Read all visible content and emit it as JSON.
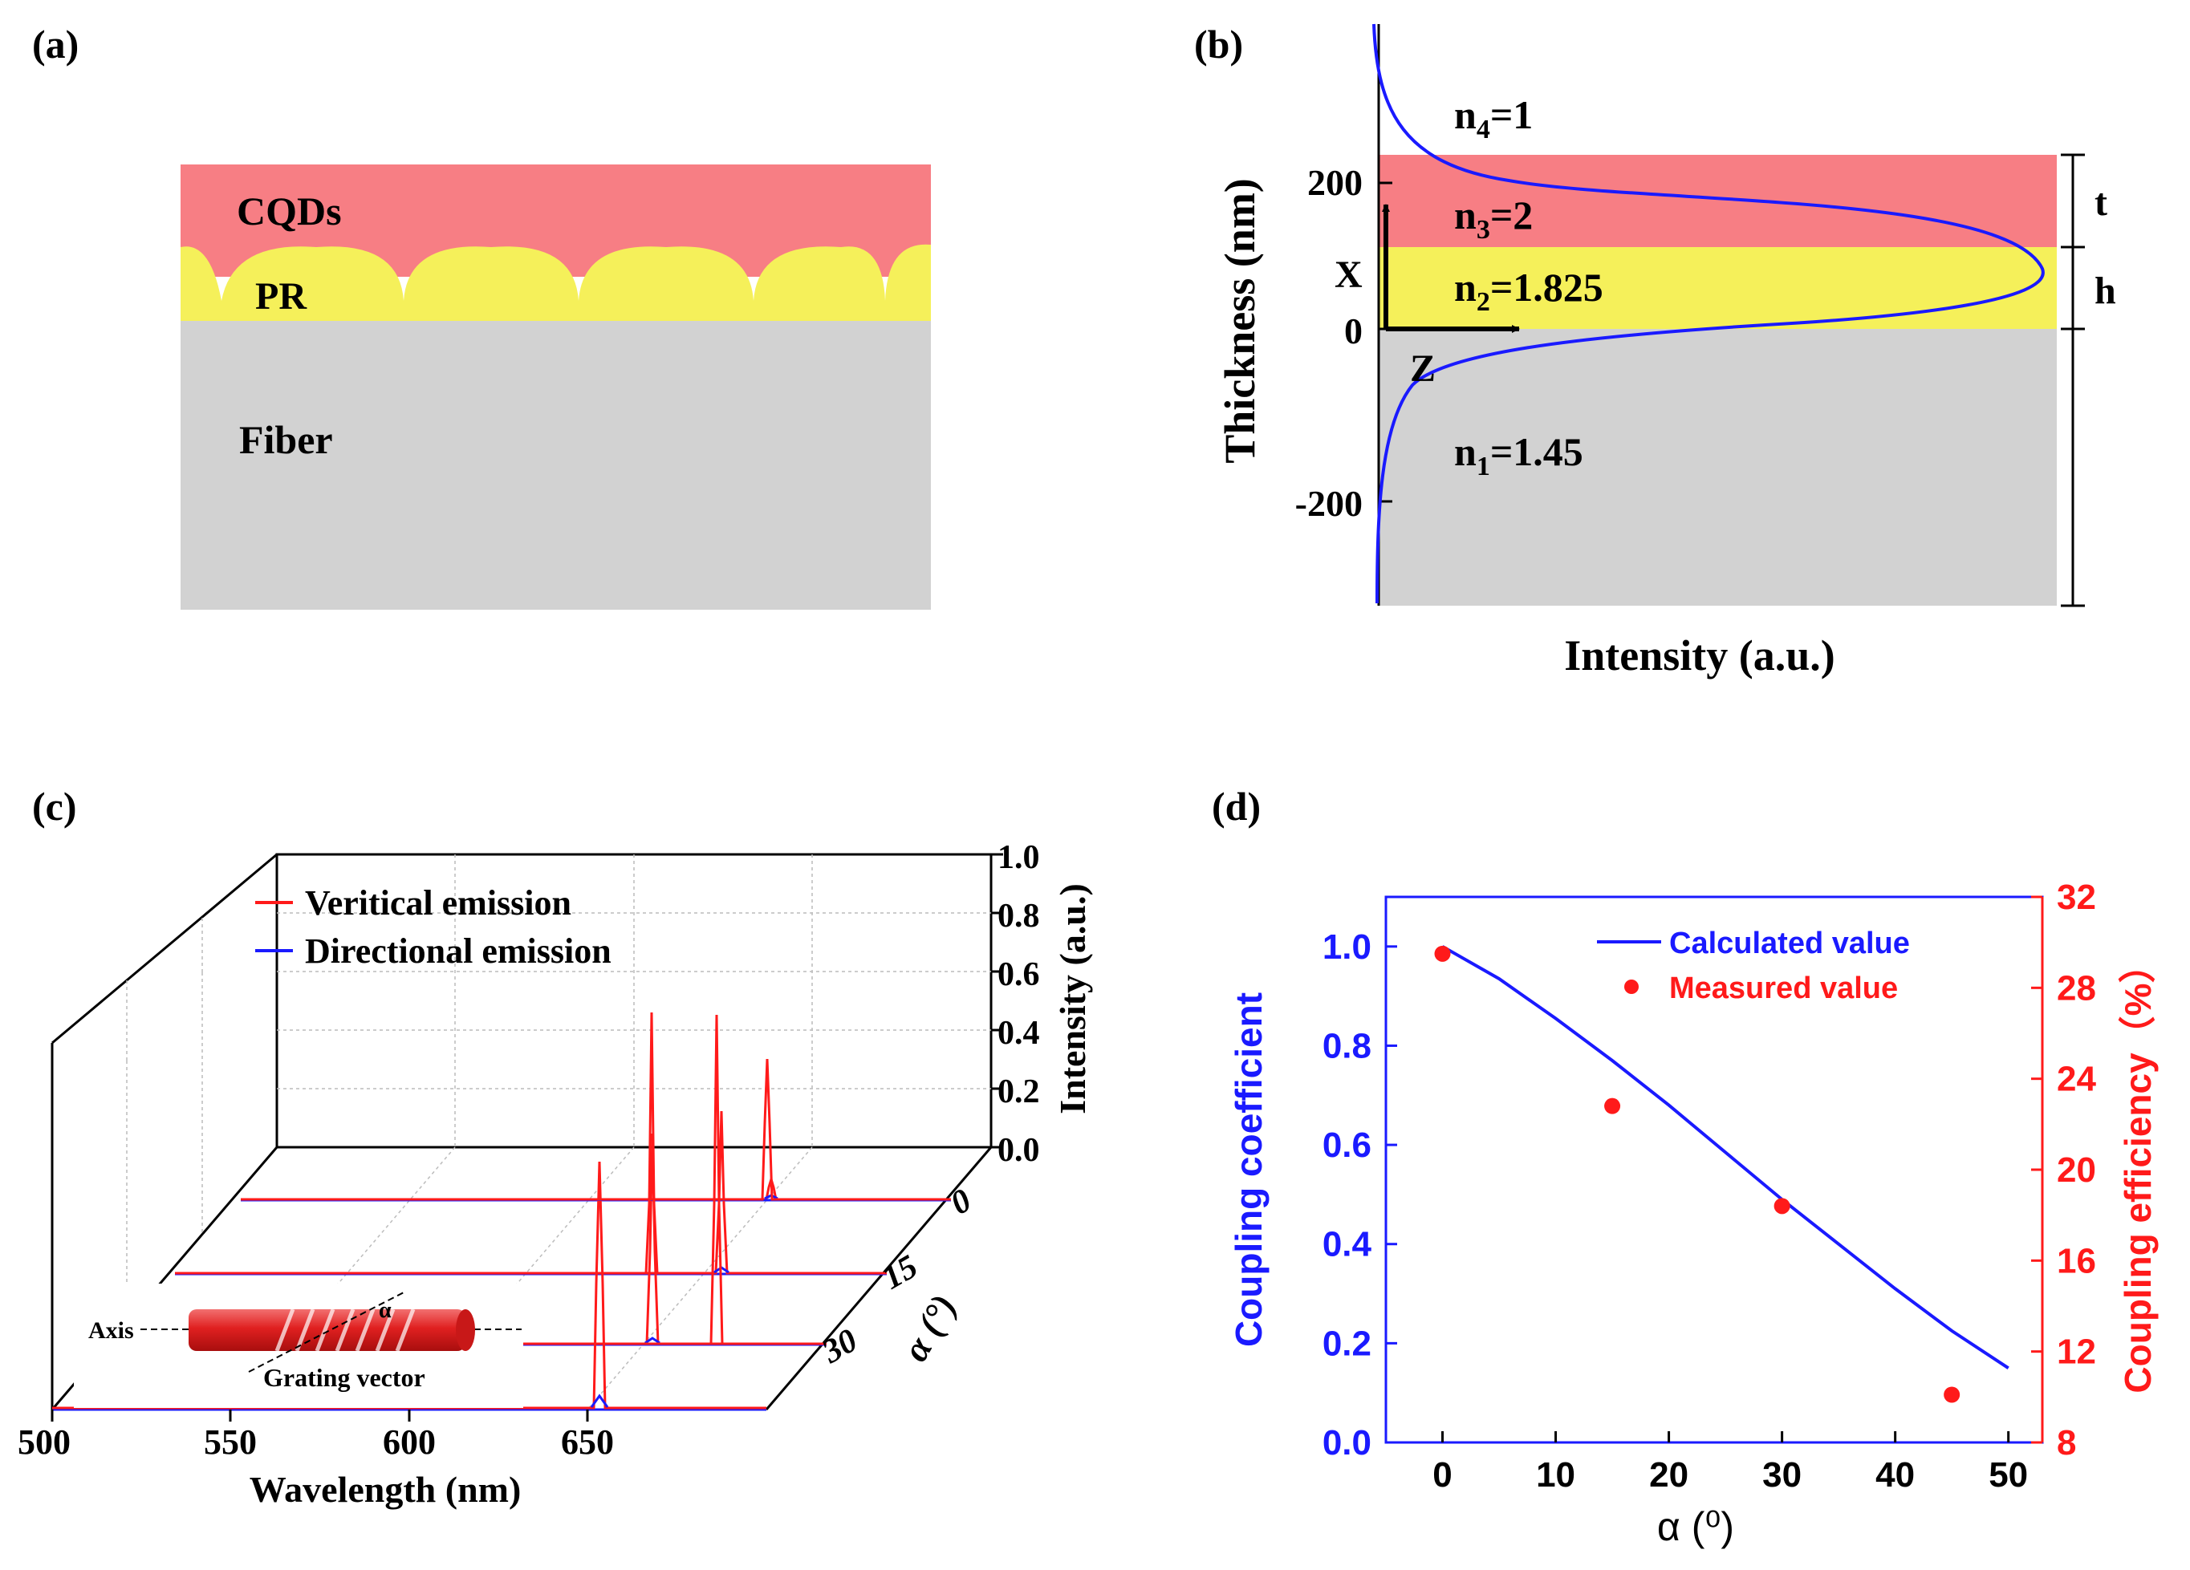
{
  "figure": {
    "panels": [
      {
        "label": "(a)"
      },
      {
        "label": "(b)"
      },
      {
        "label": "(c)"
      },
      {
        "label": "(d)"
      }
    ]
  },
  "panel_a": {
    "layers": {
      "cqds": "CQDs",
      "pr": "PR",
      "fiber": "Fiber"
    },
    "colors": {
      "cqds": "#f77e84",
      "pr": "#f5f05a",
      "fiber": "#d2d2d2"
    }
  },
  "panel_b": {
    "ylabel": "Thickness (nm)",
    "xlabel": "Intensity (a.u.)",
    "ticks": {
      "t200": "200",
      "t0": "0",
      "tm200": "-200"
    },
    "n4": {
      "base": "n",
      "sub": "4",
      "rest": "=1"
    },
    "n3": {
      "base": "n",
      "sub": "3",
      "rest": "=2"
    },
    "n2": {
      "base": "n",
      "sub": "2",
      "rest": "=1.825"
    },
    "n1": {
      "base": "n",
      "sub": "1",
      "rest": "=1.45"
    },
    "axis_x": "X",
    "axis_z": "Z",
    "dim_t": "t",
    "dim_h": "h",
    "curve_color": "#1a1aff"
  },
  "panel_c": {
    "legend": {
      "vertical": "Veritical emission",
      "directional": "Directional emission"
    },
    "xlabel": "Wavelength (nm)",
    "xticks": [
      "500",
      "550",
      "600",
      "650"
    ],
    "zlabel": "Intensity (a.u.)",
    "zticks": [
      "0.0",
      "0.2",
      "0.4",
      "0.6",
      "0.8",
      "1.0"
    ],
    "ylabel": "α (°)",
    "yticks": [
      "0",
      "15",
      "30"
    ],
    "inset": {
      "axis": "Axis",
      "alpha": "α",
      "grating": "Grating vector"
    }
  },
  "chart_data": {
    "type": "scatter",
    "title": "",
    "xlabel": "α (⁰)",
    "ylabel": "Coupling coefficient",
    "y2label": "Coupling efficiency（%）",
    "xlim": [
      -5,
      53
    ],
    "ylim": [
      0.0,
      1.1
    ],
    "y2lim": [
      8,
      32
    ],
    "xticks": [
      0,
      10,
      20,
      30,
      40,
      50
    ],
    "yticks": [
      0.0,
      0.2,
      0.4,
      0.6,
      0.8,
      1.0
    ],
    "y2ticks": [
      8,
      12,
      16,
      20,
      24,
      28,
      32
    ],
    "legend_position": "top-right",
    "series": [
      {
        "name": "Calculated value",
        "kind": "line",
        "axis": "left",
        "color": "#1a1aff",
        "x": [
          0,
          5,
          10,
          15,
          20,
          25,
          30,
          35,
          40,
          45,
          50
        ],
        "values": [
          1.0,
          0.935,
          0.855,
          0.77,
          0.68,
          0.585,
          0.49,
          0.4,
          0.31,
          0.225,
          0.15
        ]
      },
      {
        "name": "Measured value",
        "kind": "scatter",
        "axis": "right",
        "color": "#ff1a1a",
        "x": [
          0,
          15,
          30,
          45
        ],
        "values": [
          29.5,
          22.8,
          18.4,
          10.1
        ]
      }
    ]
  }
}
